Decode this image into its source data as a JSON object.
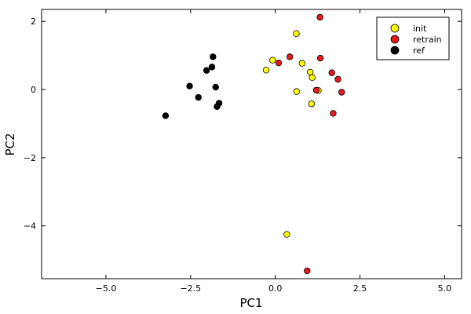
{
  "chart_data": {
    "type": "scatter",
    "xlabel": "PC1",
    "ylabel": "PC2",
    "xlim": [
      -6.9,
      5.5
    ],
    "ylim": [
      -5.55,
      2.35
    ],
    "xticks": [
      -5.0,
      -2.5,
      0.0,
      2.5,
      5.0
    ],
    "xtick_labels": [
      "−5.0",
      "−2.5",
      "0.0",
      "2.5",
      "5.0"
    ],
    "yticks": [
      2,
      0,
      -2,
      -4
    ],
    "ytick_labels": [
      "2",
      "0",
      "−2",
      "−4"
    ],
    "grid": false,
    "legend_position": "top-right",
    "series": [
      {
        "name": "init",
        "color": "#ffff00",
        "points": [
          [
            0.62,
            1.64
          ],
          [
            -0.08,
            0.86
          ],
          [
            -0.27,
            0.57
          ],
          [
            0.79,
            0.77
          ],
          [
            1.03,
            0.51
          ],
          [
            1.09,
            0.35
          ],
          [
            1.27,
            -0.03
          ],
          [
            0.63,
            -0.06
          ],
          [
            1.07,
            -0.42
          ],
          [
            0.34,
            -4.25
          ]
        ]
      },
      {
        "name": "retrain",
        "color": "#e31a1c",
        "points": [
          [
            1.32,
            2.12
          ],
          [
            0.43,
            0.96
          ],
          [
            0.1,
            0.78
          ],
          [
            1.33,
            0.92
          ],
          [
            1.67,
            0.49
          ],
          [
            1.85,
            0.3
          ],
          [
            1.21,
            -0.02
          ],
          [
            1.96,
            -0.08
          ],
          [
            1.71,
            -0.7
          ],
          [
            0.94,
            -5.32
          ]
        ]
      },
      {
        "name": "ref",
        "color": "#000000",
        "points": [
          [
            -1.84,
            0.96
          ],
          [
            -1.87,
            0.66
          ],
          [
            -2.03,
            0.56
          ],
          [
            -2.53,
            0.1
          ],
          [
            -1.76,
            0.07
          ],
          [
            -2.27,
            -0.23
          ],
          [
            -1.66,
            -0.4
          ],
          [
            -1.72,
            -0.5
          ],
          [
            -3.24,
            -0.77
          ]
        ]
      }
    ]
  }
}
